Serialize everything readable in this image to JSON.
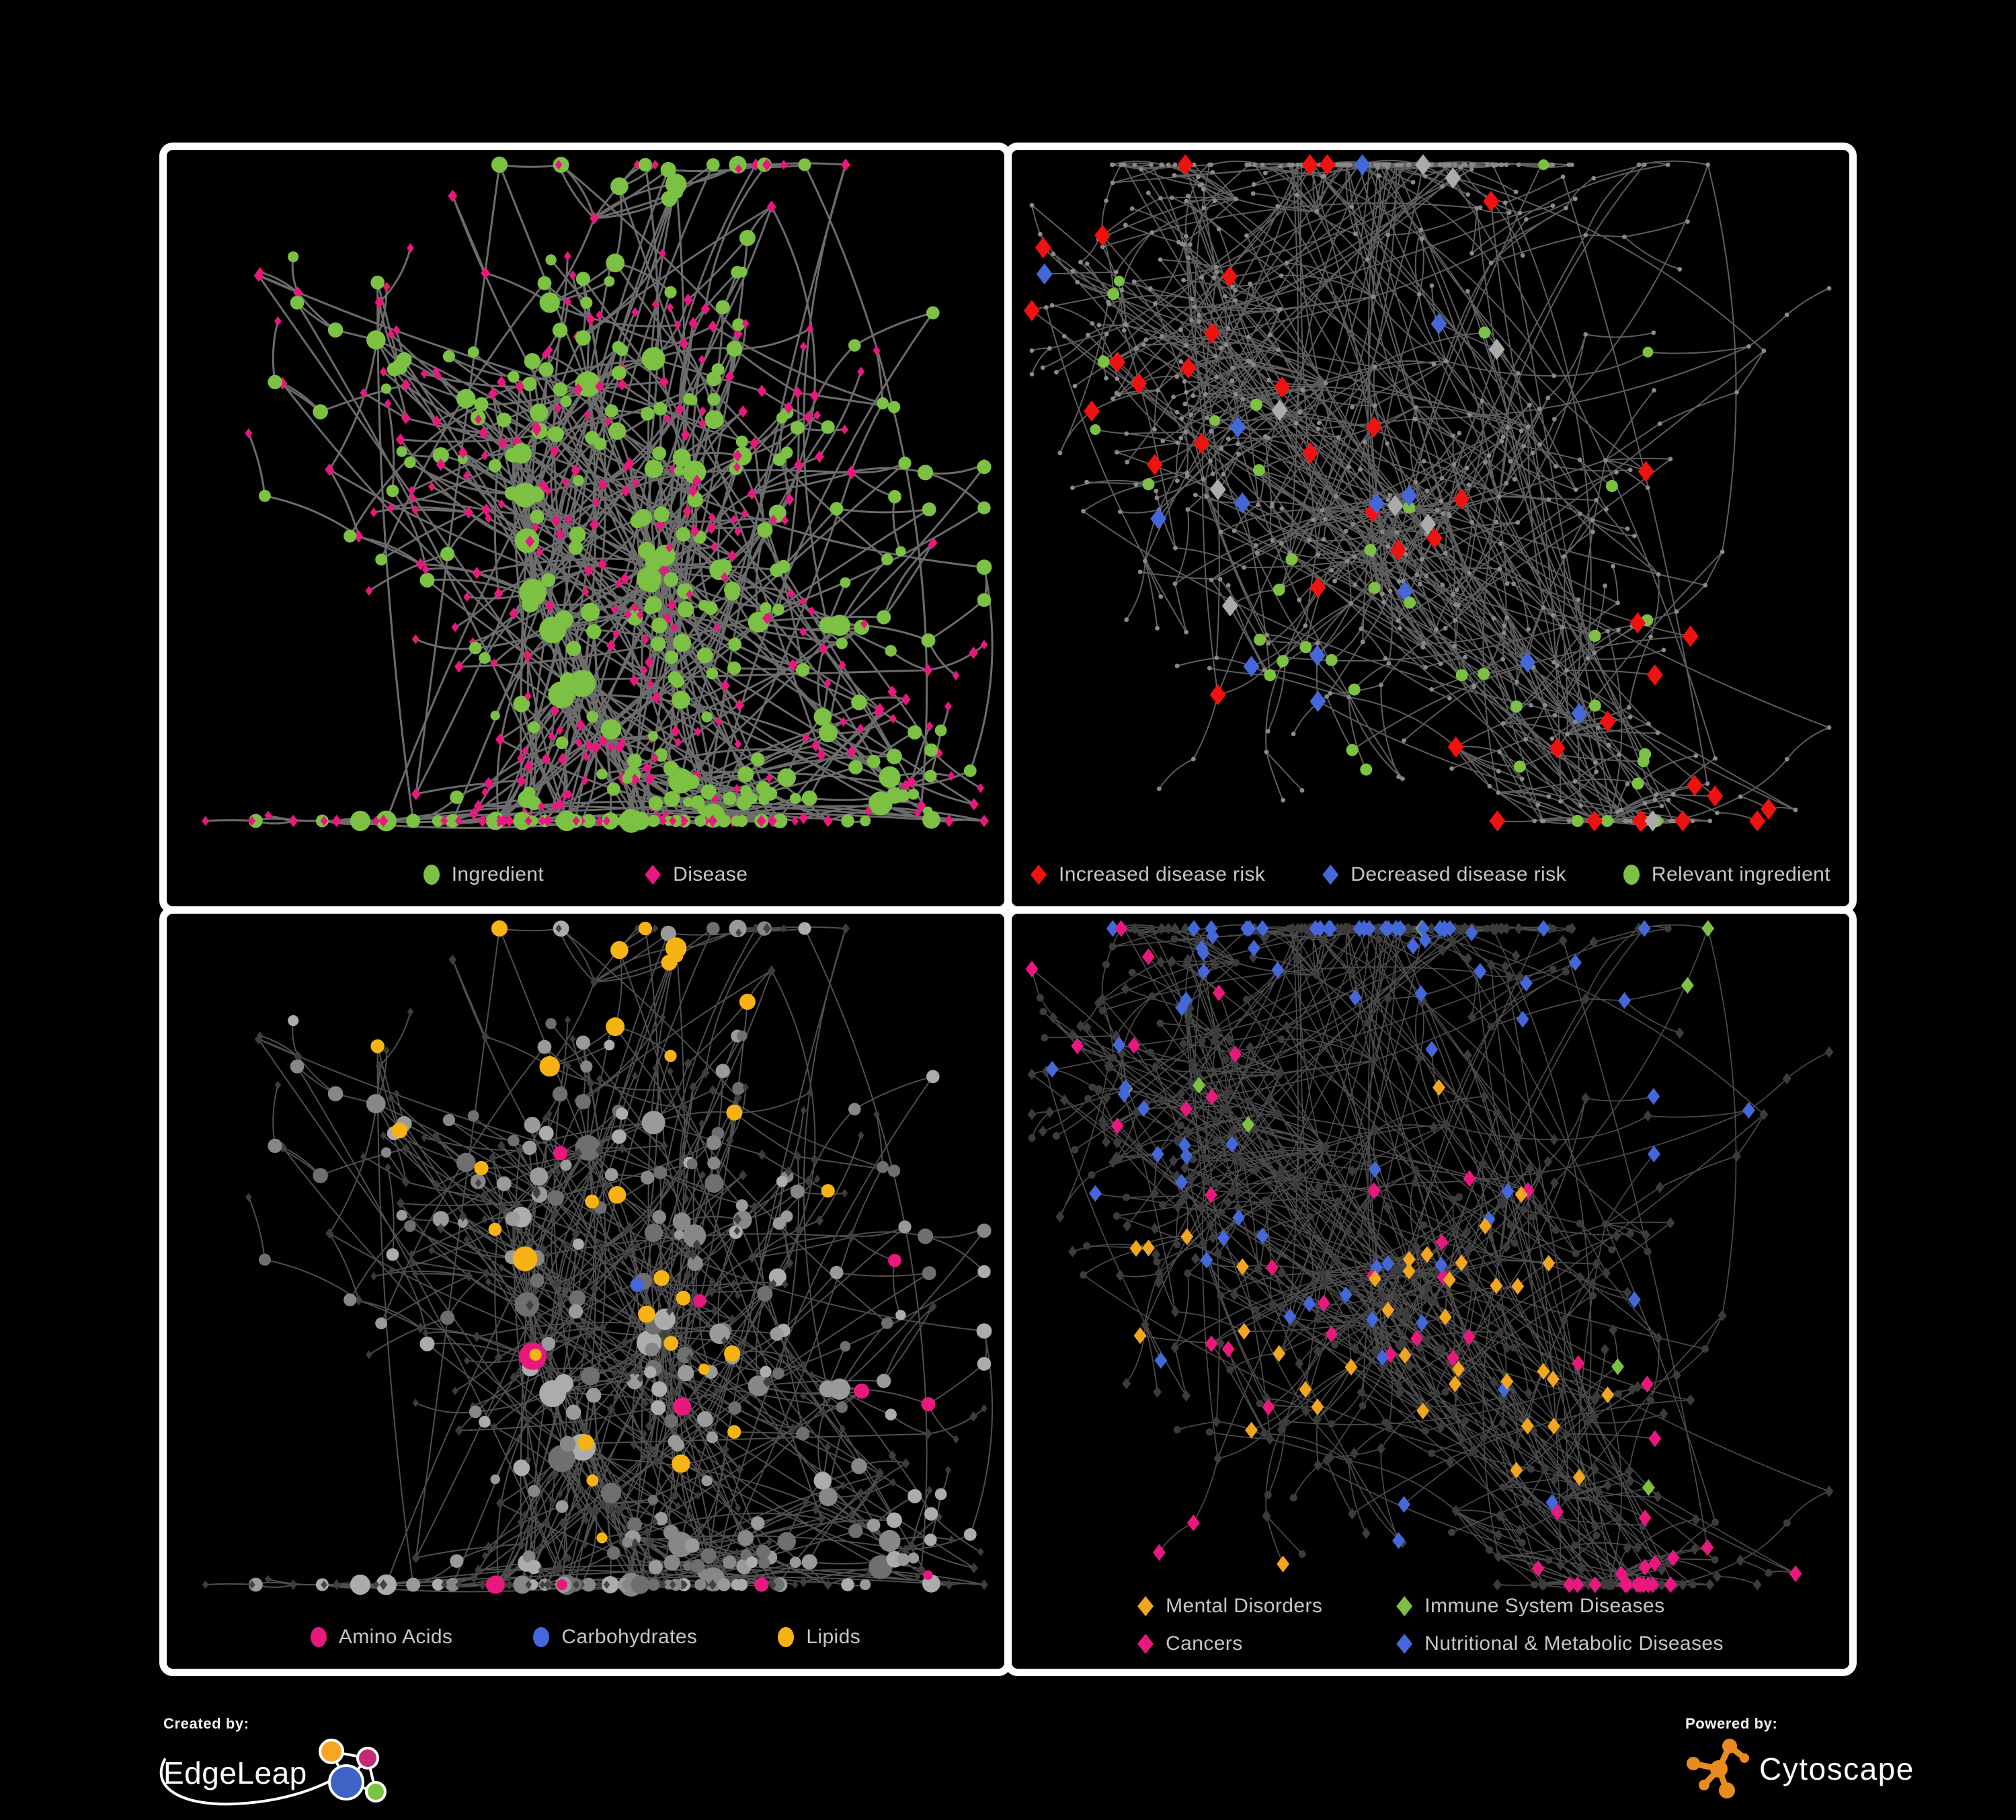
{
  "page": {
    "background": "#000000",
    "panel_border": "#FFFFFF",
    "legend_text_color": "#C6C6C6"
  },
  "panels": [
    {
      "name": "ingredient-disease-network",
      "legend": [
        {
          "label": "Ingredient",
          "shape": "circle",
          "color": "#7CC143"
        },
        {
          "label": "Disease",
          "shape": "diamond",
          "color": "#E8187F"
        }
      ]
    },
    {
      "name": "disease-risk-network",
      "legend": [
        {
          "label": "Increased disease risk",
          "shape": "diamond",
          "color": "#F01111"
        },
        {
          "label": "Decreased disease risk",
          "shape": "diamond",
          "color": "#4468D9"
        },
        {
          "label": "Relevant ingredient",
          "shape": "circle",
          "color": "#7CC143"
        }
      ]
    },
    {
      "name": "nutrient-class-network",
      "legend": [
        {
          "label": "Amino Acids",
          "shape": "circle",
          "color": "#E8187F"
        },
        {
          "label": "Carbohydrates",
          "shape": "circle",
          "color": "#4468D9"
        },
        {
          "label": "Lipids",
          "shape": "circle",
          "color": "#F7B313"
        }
      ]
    },
    {
      "name": "disease-class-network",
      "legend": [
        {
          "label": "Mental Disorders",
          "shape": "diamond",
          "color": "#F2A51F"
        },
        {
          "label": "Immune System Diseases",
          "shape": "diamond",
          "color": "#7CC143"
        },
        {
          "label": "Cancers",
          "shape": "diamond",
          "color": "#E8187F"
        },
        {
          "label": "Nutritional & Metabolic Diseases",
          "shape": "diamond",
          "color": "#4468D9"
        }
      ]
    }
  ],
  "footer": {
    "created_by_label": "Created by:",
    "created_by_brand": "EdgeLeap",
    "powered_by_label": "Powered by:",
    "powered_by_brand": "Cytoscape"
  },
  "render_hints": {
    "networks": {
      "A": {
        "seed": 20,
        "nodes": 620,
        "hubs": 8,
        "extra_edges": 150,
        "step": 150,
        "bias": 1.35
      },
      "B": {
        "seed": 7,
        "nodes": 720,
        "hubs": 9,
        "extra_edges": 200,
        "step": 135,
        "bias": 1.4
      }
    },
    "panel_styles": [
      {
        "network": "A",
        "edge_color": "#787878",
        "edge_width": 3.0,
        "edge_opacity": 0.9
      },
      {
        "network": "B",
        "edge_color": "#6F6F6F",
        "edge_width": 2.0,
        "edge_opacity": 0.85,
        "base_node_color": "#8A8A8A",
        "neutral_diamond_color": "#ABABAB"
      },
      {
        "network": "A",
        "edge_color": "#909090",
        "edge_width": 2.0,
        "edge_opacity": 0.55,
        "circle_color": "#9A9A9A",
        "diamond_color": "#3F3F3F"
      },
      {
        "network": "B",
        "edge_color": "#969696",
        "edge_width": 1.7,
        "edge_opacity": 0.5,
        "base_node_color": "#3C3C3C"
      }
    ],
    "logo_colors": {
      "edgeleap_orange": "#F5A623",
      "edgeleap_magenta": "#C62B72",
      "edgeleap_blue": "#3E63C4",
      "edgeleap_green": "#7CC143",
      "cytoscape_orange": "#E98C1F"
    }
  }
}
